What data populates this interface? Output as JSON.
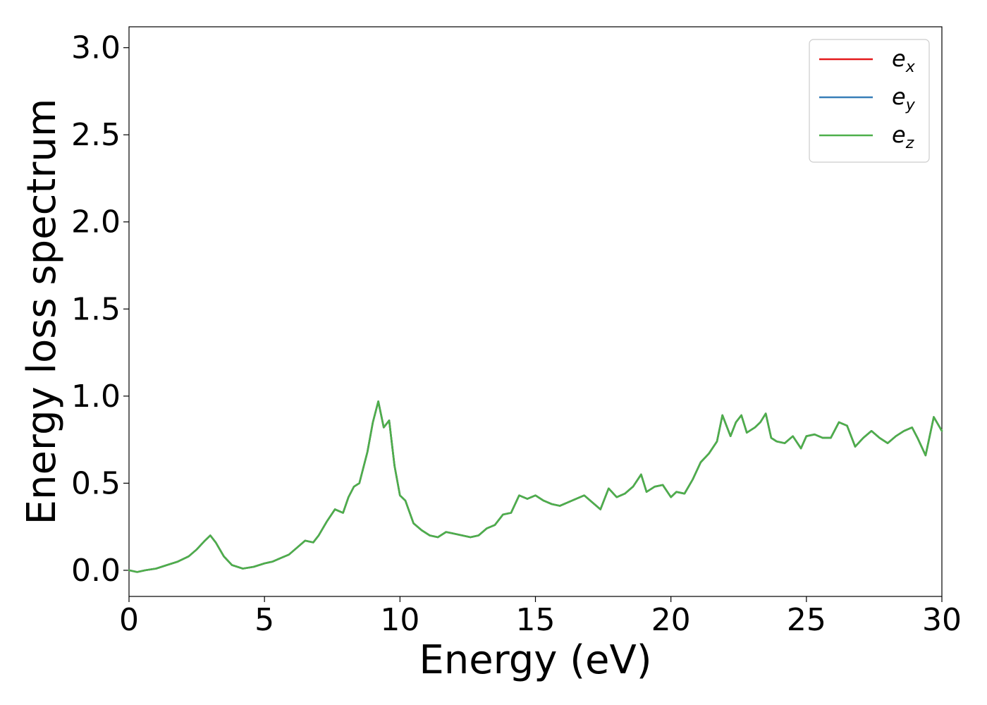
{
  "chart_data": {
    "type": "line",
    "xlabel": "Energy (eV)",
    "ylabel": "Energy loss spectrum",
    "xlim": [
      0,
      30
    ],
    "ylim": [
      -0.15,
      3.12
    ],
    "xticks": [
      0,
      5,
      10,
      15,
      20,
      25,
      30
    ],
    "xtick_labels": [
      "0",
      "5",
      "10",
      "15",
      "20",
      "25",
      "30"
    ],
    "yticks": [
      0.0,
      0.5,
      1.0,
      1.5,
      2.0,
      2.5,
      3.0
    ],
    "ytick_labels": [
      "0.0",
      "0.5",
      "1.0",
      "1.5",
      "2.0",
      "2.5",
      "3.0"
    ],
    "grid": false,
    "legend_position": "top-right",
    "x": [
      0,
      0.3,
      0.6,
      1.0,
      1.4,
      1.8,
      2.2,
      2.5,
      2.8,
      3.0,
      3.2,
      3.5,
      3.8,
      4.2,
      4.6,
      5.0,
      5.3,
      5.6,
      5.9,
      6.2,
      6.5,
      6.8,
      7.0,
      7.3,
      7.6,
      7.9,
      8.1,
      8.3,
      8.5,
      8.8,
      9.0,
      9.2,
      9.4,
      9.6,
      9.8,
      10.0,
      10.2,
      10.5,
      10.8,
      11.1,
      11.4,
      11.7,
      12.0,
      12.3,
      12.6,
      12.9,
      13.2,
      13.5,
      13.8,
      14.1,
      14.4,
      14.7,
      15.0,
      15.3,
      15.6,
      15.9,
      16.2,
      16.5,
      16.8,
      17.1,
      17.4,
      17.7,
      18.0,
      18.3,
      18.6,
      18.9,
      19.1,
      19.4,
      19.7,
      20.0,
      20.2,
      20.5,
      20.8,
      21.1,
      21.4,
      21.7,
      21.9,
      22.2,
      22.4,
      22.6,
      22.8,
      23.1,
      23.3,
      23.5,
      23.7,
      23.9,
      24.2,
      24.5,
      24.8,
      25.0,
      25.3,
      25.6,
      25.9,
      26.2,
      26.5,
      26.8,
      27.1,
      27.4,
      27.7,
      28.0,
      28.3,
      28.6,
      28.9,
      29.1,
      29.4,
      29.7,
      30.0
    ],
    "series": [
      {
        "name": "e_x",
        "color": "#e41a1c"
      },
      {
        "name": "e_y",
        "color": "#377eb8"
      },
      {
        "name": "e_z",
        "color": "#4daf4a"
      }
    ],
    "y": [
      0.0,
      -0.01,
      0.0,
      0.01,
      0.03,
      0.05,
      0.08,
      0.12,
      0.17,
      0.2,
      0.16,
      0.08,
      0.03,
      0.01,
      0.02,
      0.04,
      0.05,
      0.07,
      0.09,
      0.13,
      0.17,
      0.16,
      0.2,
      0.28,
      0.35,
      0.33,
      0.42,
      0.48,
      0.5,
      0.68,
      0.85,
      0.97,
      0.82,
      0.86,
      0.6,
      0.43,
      0.4,
      0.27,
      0.23,
      0.2,
      0.19,
      0.22,
      0.21,
      0.2,
      0.19,
      0.2,
      0.24,
      0.26,
      0.32,
      0.33,
      0.43,
      0.41,
      0.43,
      0.4,
      0.38,
      0.37,
      0.39,
      0.41,
      0.43,
      0.39,
      0.35,
      0.47,
      0.42,
      0.44,
      0.48,
      0.55,
      0.45,
      0.48,
      0.49,
      0.42,
      0.45,
      0.44,
      0.52,
      0.62,
      0.67,
      0.74,
      0.89,
      0.77,
      0.85,
      0.89,
      0.79,
      0.82,
      0.85,
      0.9,
      0.76,
      0.74,
      0.73,
      0.77,
      0.7,
      0.77,
      0.78,
      0.76,
      0.76,
      0.85,
      0.83,
      0.71,
      0.76,
      0.8,
      0.76,
      0.73,
      0.77,
      0.8,
      0.82,
      0.76,
      0.66,
      0.88,
      0.8
    ]
  },
  "legend": {
    "items": [
      {
        "base": "e",
        "sub": "x",
        "color": "#e41a1c"
      },
      {
        "base": "e",
        "sub": "y",
        "color": "#377eb8"
      },
      {
        "base": "e",
        "sub": "z",
        "color": "#4daf4a"
      }
    ]
  }
}
